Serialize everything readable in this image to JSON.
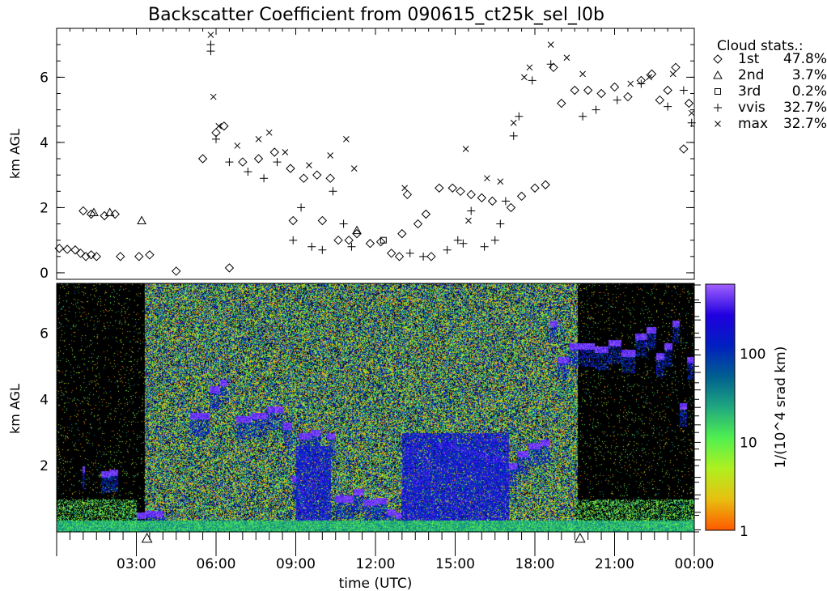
{
  "chart_data": [
    {
      "type": "scatter",
      "title": "Backscatter Coefficient from 090615_ct25k_sel_l0b",
      "ylabel": "km AGL",
      "xlim_hours": [
        0,
        24
      ],
      "ylim": [
        -0.2,
        7.5
      ],
      "yticks": [
        "0",
        "2",
        "4",
        "6"
      ],
      "legend_title": "Cloud stats.:",
      "legend_position": "right",
      "series": [
        {
          "name": "1st",
          "stat": "47.8%",
          "marker": "diamond",
          "points": [
            [
              0.1,
              0.75
            ],
            [
              0.4,
              0.72
            ],
            [
              0.7,
              0.7
            ],
            [
              0.9,
              0.6
            ],
            [
              1.1,
              0.5
            ],
            [
              1.3,
              0.55
            ],
            [
              1.5,
              0.5
            ],
            [
              1.0,
              1.9
            ],
            [
              1.3,
              1.8
            ],
            [
              1.8,
              1.75
            ],
            [
              2.2,
              1.8
            ],
            [
              2.4,
              0.5
            ],
            [
              3.1,
              0.5
            ],
            [
              3.5,
              0.55
            ],
            [
              4.5,
              0.05
            ],
            [
              6.5,
              0.15
            ],
            [
              5.5,
              3.5
            ],
            [
              6.0,
              4.3
            ],
            [
              6.3,
              4.5
            ],
            [
              7.0,
              3.4
            ],
            [
              7.6,
              3.5
            ],
            [
              8.2,
              3.7
            ],
            [
              8.8,
              3.2
            ],
            [
              9.3,
              2.9
            ],
            [
              9.8,
              3.0
            ],
            [
              10.3,
              2.9
            ],
            [
              8.9,
              1.6
            ],
            [
              10.0,
              1.6
            ],
            [
              10.6,
              1.0
            ],
            [
              11.0,
              1.0
            ],
            [
              11.3,
              1.2
            ],
            [
              11.8,
              0.9
            ],
            [
              12.2,
              0.95
            ],
            [
              12.6,
              0.6
            ],
            [
              12.9,
              0.5
            ],
            [
              13.0,
              1.2
            ],
            [
              13.2,
              2.4
            ],
            [
              13.6,
              1.5
            ],
            [
              13.9,
              1.8
            ],
            [
              14.1,
              0.5
            ],
            [
              14.4,
              2.6
            ],
            [
              14.9,
              2.6
            ],
            [
              15.2,
              2.5
            ],
            [
              15.6,
              2.4
            ],
            [
              16.0,
              2.3
            ],
            [
              16.4,
              2.2
            ],
            [
              17.1,
              2.0
            ],
            [
              17.5,
              2.35
            ],
            [
              18.0,
              2.6
            ],
            [
              18.4,
              2.7
            ],
            [
              18.7,
              6.3
            ],
            [
              19.0,
              5.2
            ],
            [
              19.5,
              5.6
            ],
            [
              20.0,
              5.6
            ],
            [
              20.5,
              5.5
            ],
            [
              21.0,
              5.7
            ],
            [
              21.5,
              5.4
            ],
            [
              22.0,
              5.9
            ],
            [
              22.4,
              6.1
            ],
            [
              22.7,
              5.3
            ],
            [
              23.0,
              5.6
            ],
            [
              23.3,
              6.3
            ],
            [
              23.6,
              3.8
            ],
            [
              23.8,
              5.2
            ]
          ]
        },
        {
          "name": "2nd",
          "stat": "3.7%",
          "marker": "triangle",
          "points": [
            [
              1.4,
              1.85
            ],
            [
              2.0,
              1.85
            ],
            [
              3.2,
              1.6
            ],
            [
              11.3,
              1.3
            ]
          ]
        },
        {
          "name": "3rd",
          "stat": "0.2%",
          "marker": "square",
          "points": [
            [
              12.3,
              1.0
            ]
          ]
        },
        {
          "name": "vvis",
          "stat": "32.7%",
          "marker": "plus",
          "points": [
            [
              5.8,
              7.0
            ],
            [
              5.8,
              6.8
            ],
            [
              6.0,
              4.1
            ],
            [
              6.5,
              3.4
            ],
            [
              7.2,
              3.1
            ],
            [
              7.8,
              2.9
            ],
            [
              8.3,
              3.4
            ],
            [
              8.9,
              1.0
            ],
            [
              9.2,
              2.0
            ],
            [
              9.6,
              0.8
            ],
            [
              10.0,
              0.7
            ],
            [
              10.4,
              2.5
            ],
            [
              10.8,
              1.5
            ],
            [
              11.1,
              0.8
            ],
            [
              13.3,
              0.6
            ],
            [
              13.8,
              0.5
            ],
            [
              14.7,
              0.7
            ],
            [
              15.1,
              1.0
            ],
            [
              15.3,
              0.9
            ],
            [
              15.6,
              1.9
            ],
            [
              16.1,
              0.8
            ],
            [
              16.5,
              1.0
            ],
            [
              16.7,
              1.5
            ],
            [
              16.9,
              2.2
            ],
            [
              17.2,
              4.2
            ],
            [
              17.4,
              4.8
            ],
            [
              17.9,
              5.9
            ],
            [
              18.6,
              6.4
            ],
            [
              19.8,
              4.8
            ],
            [
              20.3,
              5.0
            ],
            [
              21.1,
              5.3
            ],
            [
              22.0,
              5.8
            ],
            [
              23.0,
              5.1
            ],
            [
              23.6,
              5.6
            ],
            [
              23.9,
              4.6
            ]
          ]
        },
        {
          "name": "max",
          "stat": "32.7%",
          "marker": "x",
          "points": [
            [
              5.8,
              7.3
            ],
            [
              5.9,
              5.4
            ],
            [
              6.1,
              4.5
            ],
            [
              6.8,
              3.9
            ],
            [
              7.6,
              4.1
            ],
            [
              8.0,
              4.3
            ],
            [
              8.6,
              3.7
            ],
            [
              9.5,
              3.3
            ],
            [
              10.3,
              3.6
            ],
            [
              10.9,
              4.1
            ],
            [
              11.2,
              3.2
            ],
            [
              13.1,
              2.6
            ],
            [
              15.4,
              3.8
            ],
            [
              15.5,
              1.6
            ],
            [
              16.2,
              2.9
            ],
            [
              16.7,
              2.8
            ],
            [
              17.2,
              4.6
            ],
            [
              17.6,
              6.0
            ],
            [
              17.8,
              6.3
            ],
            [
              18.6,
              7.0
            ],
            [
              19.2,
              6.6
            ],
            [
              19.8,
              6.1
            ],
            [
              21.6,
              5.8
            ],
            [
              22.3,
              6.0
            ],
            [
              23.2,
              6.1
            ],
            [
              23.9,
              4.9
            ]
          ]
        }
      ]
    },
    {
      "type": "heatmap",
      "ylabel": "km AGL",
      "xlabel": "time (UTC)",
      "xlim_hours": [
        0,
        24
      ],
      "ylim": [
        0,
        7.5
      ],
      "yticks": [
        "2",
        "4",
        "6"
      ],
      "xticks": [
        "03:00",
        "06:00",
        "09:00",
        "12:00",
        "15:00",
        "18:00",
        "21:00",
        "00:00"
      ],
      "colorbar": {
        "label": "1/(10^4 srad km)",
        "scale": "log",
        "range": [
          1,
          600
        ],
        "ticks": [
          "1",
          "10",
          "100"
        ],
        "colors": [
          "#ff5a00",
          "#e8c010",
          "#b0f020",
          "#50f050",
          "#20a880",
          "#006090",
          "#0020c0",
          "#2000e0",
          "#a060ff"
        ]
      },
      "markers": [
        {
          "marker": "triangle",
          "hour": 3.4
        },
        {
          "marker": "triangle",
          "hour": 19.7
        }
      ]
    }
  ]
}
